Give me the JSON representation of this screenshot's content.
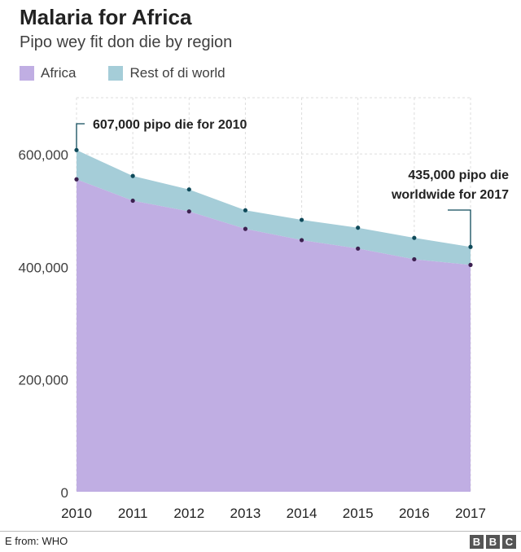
{
  "chart_data": {
    "type": "area",
    "title": "Malaria for Africa",
    "subtitle": "Pipo wey fit don die by region",
    "categories": [
      "2010",
      "2011",
      "2012",
      "2013",
      "2014",
      "2015",
      "2016",
      "2017"
    ],
    "series": [
      {
        "name": "Africa",
        "values": [
          555000,
          517000,
          498000,
          467000,
          447000,
          432000,
          413000,
          403000
        ],
        "color": "#c0aee3"
      },
      {
        "name": "Rest of di world",
        "values": [
          52000,
          44000,
          39000,
          33000,
          36000,
          37000,
          38000,
          32000
        ],
        "color": "#a5cdd8"
      }
    ],
    "totals": [
      607000,
      561000,
      537000,
      500000,
      483000,
      469000,
      451000,
      435000
    ],
    "stacked": true,
    "ylim": [
      0,
      700000
    ],
    "yticks": [
      0,
      200000,
      400000,
      600000
    ],
    "ytick_labels": [
      "0",
      "200,000",
      "400,000",
      "600,000"
    ],
    "xlabel": "",
    "ylabel": "",
    "grid": true,
    "annotations": [
      {
        "text": [
          "607,000 pipo die for 2010"
        ],
        "category": "2010",
        "value": 607000
      },
      {
        "text": [
          "435,000 pipo die",
          "worldwide for 2017"
        ],
        "category": "2017",
        "value": 435000
      }
    ],
    "source": "E from: WHO"
  },
  "branding": {
    "logo_letters": [
      "B",
      "B",
      "C"
    ]
  },
  "colors": {
    "africa": "#c0aee3",
    "rest": "#a5cdd8",
    "total_marker": "#0f4a5a",
    "africa_marker": "#3d2150",
    "annotation_line": "#0f4a5a",
    "grid": "#dddddd"
  }
}
